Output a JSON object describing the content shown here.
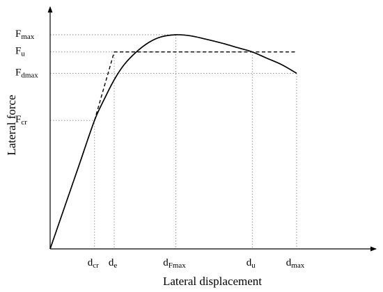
{
  "chart_data": {
    "type": "line",
    "xlabel": "Lateral displacement",
    "ylabel": "Lateral force",
    "x_ticks": [
      {
        "id": "dcr",
        "base": "d",
        "sub": "cr",
        "value": 0.18
      },
      {
        "id": "de",
        "base": "d",
        "sub": "e",
        "value": 0.26
      },
      {
        "id": "dfmax",
        "base": "d",
        "sub": "Fmax",
        "value": 0.51
      },
      {
        "id": "du",
        "base": "d",
        "sub": "u",
        "value": 0.82
      },
      {
        "id": "dmax",
        "base": "d",
        "sub": "max",
        "value": 1.0
      }
    ],
    "y_ticks": [
      {
        "id": "fcr",
        "base": "F",
        "sub": "cr",
        "value": 0.6
      },
      {
        "id": "fdmax",
        "base": "F",
        "sub": "dmax",
        "value": 0.82
      },
      {
        "id": "fu",
        "base": "F",
        "sub": "u",
        "value": 0.92
      },
      {
        "id": "fmax",
        "base": "F",
        "sub": "max",
        "value": 1.0
      }
    ],
    "series": [
      {
        "id": "curve",
        "style": "solid",
        "x": [
          0,
          0.06,
          0.12,
          0.18,
          0.22,
          0.26,
          0.3,
          0.35,
          0.4,
          0.45,
          0.51,
          0.57,
          0.63,
          0.7,
          0.76,
          0.82,
          0.88,
          0.94,
          1.0
        ],
        "y": [
          0,
          0.2,
          0.4,
          0.6,
          0.7,
          0.79,
          0.86,
          0.92,
          0.964,
          0.99,
          1.0,
          0.995,
          0.98,
          0.96,
          0.94,
          0.92,
          0.89,
          0.86,
          0.82
        ]
      },
      {
        "id": "bilinear",
        "style": "dashed",
        "x": [
          0.18,
          0.26,
          1.0
        ],
        "y": [
          0.6,
          0.92,
          0.92
        ]
      }
    ],
    "xlim": [
      0,
      1.35
    ],
    "ylim": [
      0,
      1.15
    ],
    "grid": false,
    "guide_lines": "dotted"
  }
}
